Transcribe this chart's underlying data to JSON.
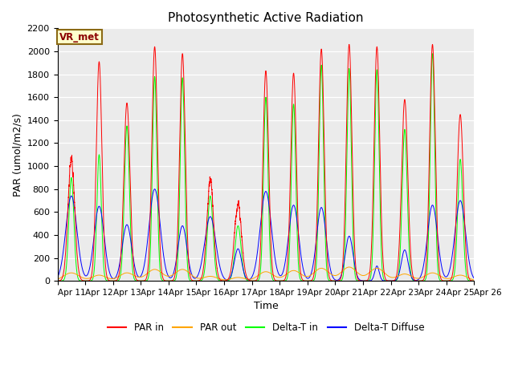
{
  "title": "Photosynthetic Active Radiation",
  "ylabel": "PAR (umol/m2/s)",
  "xlabel": "Time",
  "ylim": [
    0,
    2200
  ],
  "yticks": [
    0,
    200,
    400,
    600,
    800,
    1000,
    1200,
    1400,
    1600,
    1800,
    2000,
    2200
  ],
  "xtick_labels": [
    "Apr 11",
    "Apr 12",
    "Apr 13",
    "Apr 14",
    "Apr 15",
    "Apr 16",
    "Apr 17",
    "Apr 18",
    "Apr 19",
    "Apr 20",
    "Apr 21",
    "Apr 22",
    "Apr 23",
    "Apr 24",
    "Apr 25",
    "Apr 26"
  ],
  "background_color": "#ebebeb",
  "grid_color": "#ffffff",
  "series_colors": {
    "par_in": "#ff0000",
    "par_out": "#ffa500",
    "delta_t_in": "#00ff00",
    "delta_t_diffuse": "#0000ff"
  },
  "legend_labels": [
    "PAR in",
    "PAR out",
    "Delta-T in",
    "Delta-T Diffuse"
  ],
  "annotation_text": "VR_met",
  "annotation_bg": "#ffffcc",
  "annotation_border": "#8b6914",
  "day_peaks_par_in": [
    1070,
    1910,
    1550,
    2040,
    1980,
    870,
    660,
    1830,
    1810,
    2020,
    2060,
    2040,
    1580,
    2060,
    1450
  ],
  "day_peaks_par_out": [
    70,
    50,
    70,
    100,
    100,
    40,
    30,
    80,
    90,
    110,
    120,
    110,
    60,
    70,
    50
  ],
  "day_peaks_delta_t_in": [
    900,
    1100,
    1350,
    1780,
    1770,
    740,
    480,
    1600,
    1540,
    1880,
    1850,
    1840,
    1320,
    1980,
    1060
  ],
  "day_peaks_delta_t_diff": [
    740,
    650,
    490,
    800,
    480,
    560,
    280,
    780,
    660,
    640,
    390,
    130,
    270,
    660,
    700
  ],
  "day_widths_par_in": [
    0.12,
    0.1,
    0.11,
    0.1,
    0.1,
    0.12,
    0.13,
    0.1,
    0.1,
    0.1,
    0.1,
    0.1,
    0.11,
    0.1,
    0.11
  ],
  "day_widths_delta_t_in": [
    0.09,
    0.08,
    0.09,
    0.08,
    0.08,
    0.1,
    0.11,
    0.08,
    0.08,
    0.08,
    0.08,
    0.08,
    0.09,
    0.08,
    0.09
  ],
  "day_widths_diff": [
    0.2,
    0.18,
    0.17,
    0.2,
    0.16,
    0.2,
    0.13,
    0.2,
    0.18,
    0.17,
    0.14,
    0.08,
    0.12,
    0.18,
    0.19
  ],
  "day_widths_par_out": [
    0.28,
    0.25,
    0.27,
    0.28,
    0.28,
    0.26,
    0.24,
    0.27,
    0.27,
    0.28,
    0.28,
    0.28,
    0.26,
    0.27,
    0.26
  ]
}
